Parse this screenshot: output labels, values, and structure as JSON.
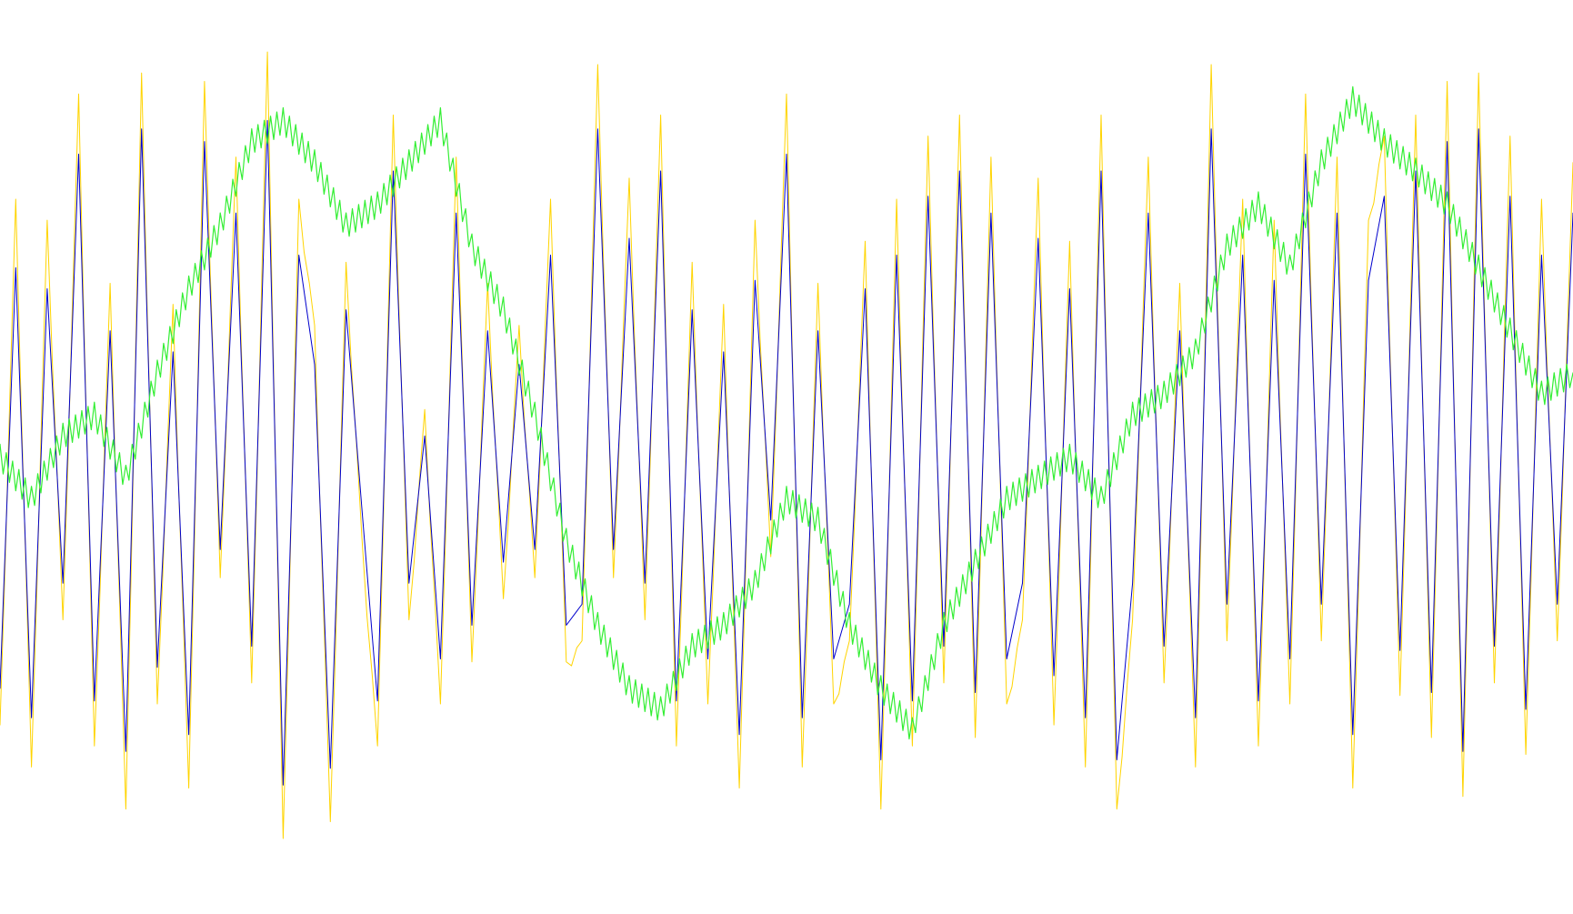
{
  "chart_data": {
    "type": "line",
    "title": "",
    "xlabel": "",
    "ylabel": "",
    "grid": false,
    "legend": "none",
    "xlim": [
      0,
      300
    ],
    "ylim": [
      -100,
      100
    ],
    "colors": {
      "background": "#ffffff",
      "blue_series": "#0000cc",
      "yellow_series": "#ffd400",
      "green_series": "#33ee33"
    },
    "series": [
      {
        "key": "yellow",
        "color": "#ffd400",
        "x": [
          0,
          3,
          6,
          9,
          12,
          15,
          18,
          21,
          24,
          27,
          30,
          33,
          36,
          39,
          42,
          45,
          48,
          51,
          54,
          57,
          60,
          63,
          66,
          69,
          72,
          75,
          78,
          81,
          84,
          87,
          90,
          93,
          96,
          99,
          102,
          105,
          108,
          111,
          114,
          117,
          120,
          123,
          126,
          129,
          132,
          135,
          138,
          141,
          144,
          147,
          150,
          153,
          156,
          159,
          162,
          165,
          168,
          171,
          174,
          177,
          180,
          183,
          186,
          189,
          192,
          195,
          198,
          201,
          204,
          207,
          210,
          213,
          216,
          219,
          222,
          225,
          228,
          231,
          234,
          237,
          240,
          243,
          246,
          249,
          252,
          255,
          258,
          261,
          264,
          267,
          270,
          273,
          276,
          279,
          282,
          285,
          288,
          291,
          294,
          297,
          300
        ],
        "y": [
          -65,
          60,
          -75,
          55,
          -40,
          85,
          -70,
          40,
          -85,
          90,
          -60,
          35,
          -80,
          88,
          -30,
          70,
          -55,
          95,
          -92,
          60,
          30,
          -88,
          45,
          -20,
          -70,
          80,
          -40,
          10,
          -60,
          70,
          -50,
          40,
          -35,
          30,
          -30,
          60,
          -50,
          -45,
          92,
          -30,
          65,
          -40,
          80,
          -70,
          45,
          -60,
          35,
          -80,
          55,
          -25,
          85,
          -75,
          40,
          -60,
          -45,
          50,
          -85,
          60,
          -70,
          75,
          -55,
          80,
          -68,
          70,
          -60,
          -40,
          65,
          -65,
          50,
          -75,
          80,
          -85,
          -40,
          70,
          -55,
          40,
          -75,
          92,
          -45,
          60,
          -70,
          55,
          -60,
          85,
          -45,
          70,
          -80,
          55,
          75,
          -58,
          80,
          -68,
          88,
          -82,
          90,
          -55,
          75,
          -72,
          60,
          -45,
          70
        ],
        "tick_spikes": true
      },
      {
        "key": "blue",
        "color": "#0000cc",
        "x": [
          0,
          3,
          6,
          9,
          12,
          15,
          18,
          21,
          24,
          27,
          30,
          33,
          36,
          39,
          42,
          45,
          48,
          51,
          54,
          57,
          60,
          63,
          66,
          69,
          72,
          75,
          78,
          81,
          84,
          87,
          90,
          93,
          96,
          99,
          102,
          105,
          108,
          111,
          114,
          117,
          120,
          123,
          126,
          129,
          132,
          135,
          138,
          141,
          144,
          147,
          150,
          153,
          156,
          159,
          162,
          165,
          168,
          171,
          174,
          177,
          180,
          183,
          186,
          189,
          192,
          195,
          198,
          201,
          204,
          207,
          210,
          213,
          216,
          219,
          222,
          225,
          228,
          231,
          234,
          237,
          240,
          243,
          246,
          249,
          252,
          255,
          258,
          261,
          264,
          267,
          270,
          273,
          276,
          279,
          282,
          285,
          288,
          291,
          294,
          297,
          300
        ],
        "y": [
          -55,
          45,
          -62,
          40,
          -30,
          72,
          -58,
          30,
          -70,
          78,
          -50,
          25,
          -66,
          75,
          -22,
          58,
          -45,
          80,
          -78,
          48,
          22,
          -74,
          35,
          -12,
          -58,
          68,
          -30,
          5,
          -48,
          58,
          -40,
          30,
          -25,
          22,
          -22,
          48,
          -40,
          -35,
          78,
          -22,
          52,
          -30,
          68,
          -58,
          35,
          -48,
          25,
          -66,
          42,
          -15,
          72,
          -62,
          30,
          -48,
          -35,
          40,
          -72,
          48,
          -58,
          62,
          -45,
          68,
          -56,
          58,
          -48,
          -30,
          52,
          -52,
          40,
          -62,
          68,
          -72,
          -30,
          58,
          -45,
          30,
          -62,
          78,
          -35,
          48,
          -58,
          42,
          -48,
          72,
          -35,
          58,
          -66,
          42,
          62,
          -46,
          68,
          -56,
          75,
          -70,
          78,
          -45,
          62,
          -60,
          48,
          -35,
          58
        ],
        "tick_spikes": false
      },
      {
        "key": "green",
        "color": "#33ee33",
        "x": [
          0,
          6,
          12,
          18,
          24,
          30,
          36,
          42,
          48,
          54,
          60,
          66,
          72,
          78,
          84,
          90,
          96,
          102,
          108,
          114,
          120,
          126,
          132,
          138,
          144,
          150,
          156,
          162,
          168,
          174,
          180,
          186,
          192,
          198,
          204,
          210,
          216,
          222,
          228,
          234,
          240,
          246,
          252,
          258,
          264,
          270,
          276,
          282,
          288,
          294,
          300
        ],
        "y": [
          0,
          -10,
          5,
          10,
          -5,
          20,
          40,
          55,
          75,
          80,
          70,
          55,
          60,
          70,
          80,
          50,
          35,
          10,
          -20,
          -40,
          -55,
          -60,
          -45,
          -40,
          -30,
          -10,
          -15,
          -40,
          -55,
          -65,
          -40,
          -25,
          -10,
          -5,
          0,
          -10,
          10,
          15,
          25,
          50,
          60,
          45,
          70,
          85,
          75,
          68,
          60,
          45,
          30,
          15,
          20
        ],
        "tick_spikes": true
      }
    ]
  }
}
